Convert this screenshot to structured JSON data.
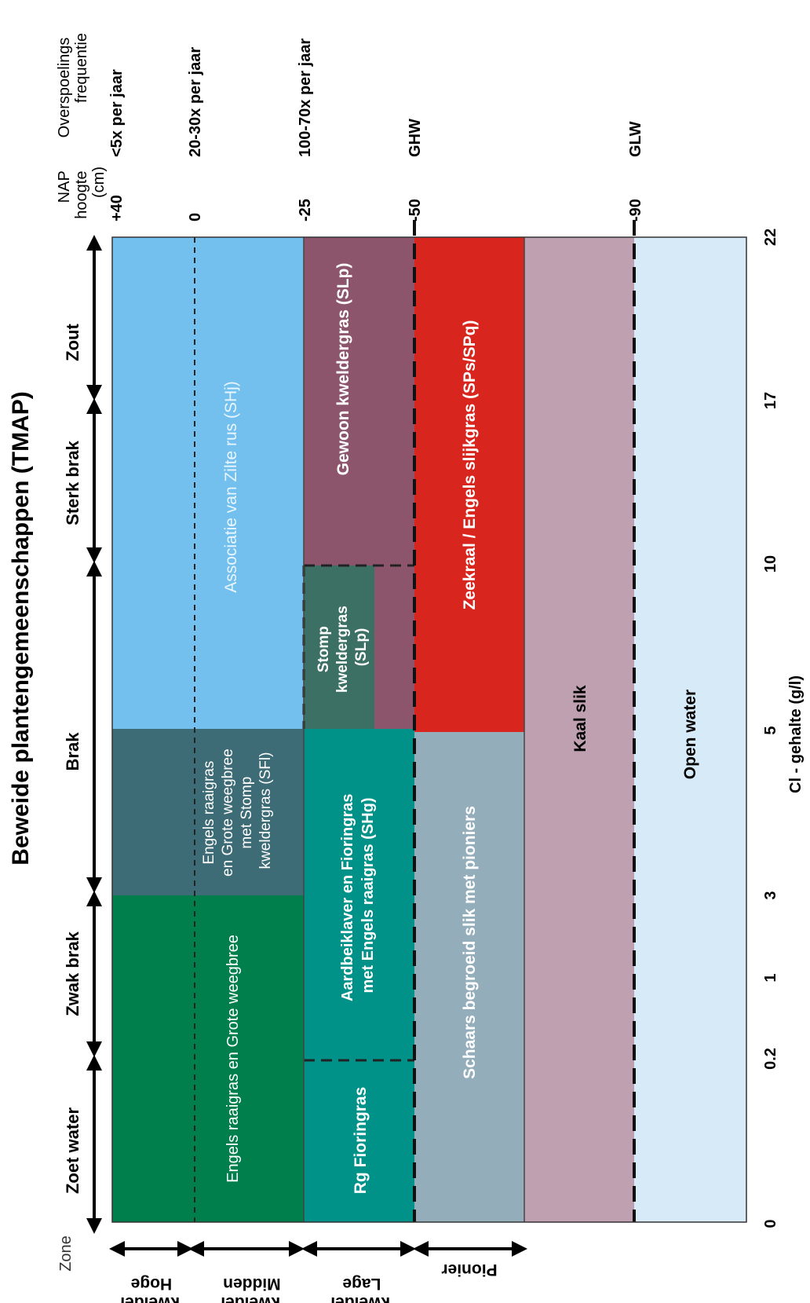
{
  "title": "Beweide plantengemeenschappen (TMAP)",
  "zone_label": "Zone",
  "zones": [
    "Hoge kwelder",
    "Midden kwelder",
    "Lage kwelder",
    "Pionier"
  ],
  "salinity_ranges": [
    "Zoet water",
    "Zwak brak",
    "Brak",
    "Sterk brak",
    "Zout"
  ],
  "x_axis": {
    "label": "Cl - gehalte (g/l)",
    "ticks": [
      "0",
      "0.2",
      "1",
      "3",
      "5",
      "10",
      "17",
      "22"
    ]
  },
  "nap": {
    "header": "NAP hoogte (cm)",
    "values": [
      "+40",
      "0",
      "-25",
      "-50",
      "-90"
    ]
  },
  "flood": {
    "header": "Overspoelings frequentie",
    "values": [
      "<5x per jaar",
      "20-30x per jaar",
      "100-70x per jaar",
      "GHW",
      "GLW"
    ]
  },
  "communities": {
    "engels_grote": "Engels raaigras en Grote weegbree",
    "engels_stomp": "Engels raaigras en Grote weegbree met Stomp kweldergras (SFl)",
    "zilte_rus": "Associatie van Zilte rus (SHj)",
    "rg_fioringras": "Rg Fioringras",
    "aardbeiklaver": "Aardbeiklaver en Fioringras met Engels raaigras (SHg)",
    "stomp": "Stomp kweldergras (SLp)",
    "gewoon": "Gewoon kweldergras (SLp)",
    "schaars": "Schaars begroeid slik met pioniers",
    "zeekraal": "Zeekraal / Engels slijkgras (SPs/SPq)",
    "kaal_slik": "Kaal slik",
    "open_water": "Open water"
  },
  "colors": {
    "dark_green": "#007f4c",
    "slate": "#3d6b76",
    "light_blue": "#73c0ee",
    "teal": "#009189",
    "dark_teal": "#3c7064",
    "mauve": "#8d556c",
    "grey_blue": "#94adbb",
    "red": "#d8261f",
    "pink_grey": "#bfa0b0",
    "pale_blue": "#d6eaf8"
  }
}
